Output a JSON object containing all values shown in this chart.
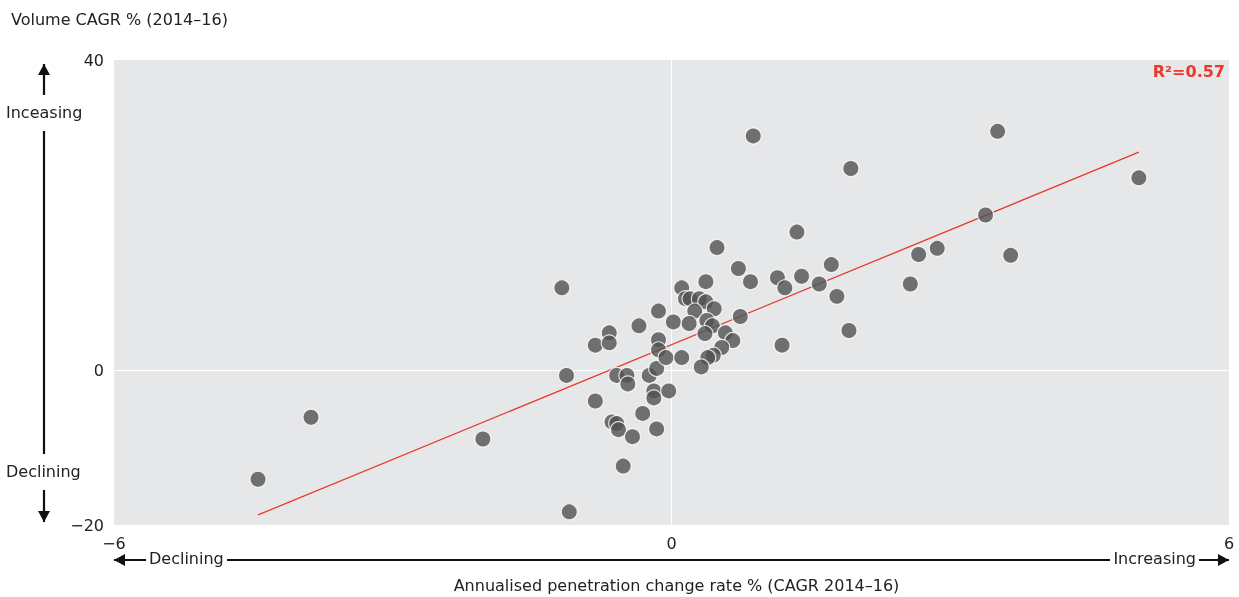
{
  "chart_data": {
    "type": "scatter",
    "title": "Volume CAGR % (2014–16)",
    "xlabel": "Annualised penetration change rate % (CAGR 2014–16)",
    "annotations": [
      "R²=0.57",
      "Inceasing",
      "Declining",
      "Declining",
      "Increasing"
    ],
    "xlim": [
      -6,
      6
    ],
    "xticks": [
      -6,
      0,
      6
    ],
    "ylim": [
      -20,
      40
    ],
    "yticks": [
      -20,
      0,
      40
    ],
    "grid": true,
    "series": [
      {
        "marker": "circle",
        "color": "#505153",
        "x": [
          -4.45,
          -3.88,
          -2.03,
          -1.1,
          -1.18,
          -1.13,
          -0.82,
          -0.67,
          -0.67,
          -0.35,
          -0.82,
          -0.64,
          -0.59,
          -0.57,
          -0.42,
          -0.52,
          -0.16,
          -0.31,
          -0.59,
          -0.48,
          -0.47,
          -0.24,
          -0.16,
          -0.19,
          -0.19,
          -0.03,
          -0.14,
          -0.14,
          -0.06,
          0.11,
          -0.14,
          0.02,
          0.11,
          0.15,
          0.2,
          0.3,
          0.37,
          0.46,
          0.25,
          0.19,
          0.37,
          0.49,
          0.38,
          0.44,
          0.36,
          0.58,
          0.66,
          0.74,
          0.54,
          0.45,
          0.39,
          0.32,
          0.72,
          0.85,
          1.14,
          1.22,
          1.4,
          1.35,
          1.19,
          1.59,
          0.88,
          3.51,
          1.93,
          5.03,
          3.38,
          2.66,
          2.86,
          3.65,
          2.57,
          1.72,
          1.78,
          1.91
        ],
        "values": [
          -14.1,
          -6.1,
          -8.9,
          -18.3,
          10.6,
          -0.7,
          3.2,
          4.8,
          3.5,
          5.7,
          -4.0,
          -6.7,
          -6.9,
          -7.7,
          -8.6,
          -12.4,
          -7.6,
          -5.6,
          -0.7,
          -0.7,
          -1.8,
          -0.7,
          0.2,
          -2.7,
          -3.6,
          -2.7,
          3.9,
          2.6,
          1.6,
          1.6,
          7.6,
          6.2,
          10.6,
          9.2,
          9.2,
          9.2,
          8.8,
          7.9,
          7.6,
          6.0,
          11.4,
          15.8,
          6.4,
          5.7,
          4.7,
          4.8,
          3.8,
          6.9,
          2.9,
          1.9,
          1.6,
          0.4,
          13.1,
          11.4,
          11.9,
          10.6,
          12.1,
          17.8,
          3.2,
          11.1,
          30.2,
          30.8,
          26.0,
          24.8,
          20.0,
          14.9,
          15.7,
          14.8,
          11.1,
          13.6,
          9.5,
          5.1
        ]
      },
      {
        "type": "line",
        "marker": "none",
        "color": "#e8392a",
        "x": [
          -4.45,
          5.03
        ],
        "values": [
          -18.7,
          28.1
        ]
      }
    ]
  }
}
